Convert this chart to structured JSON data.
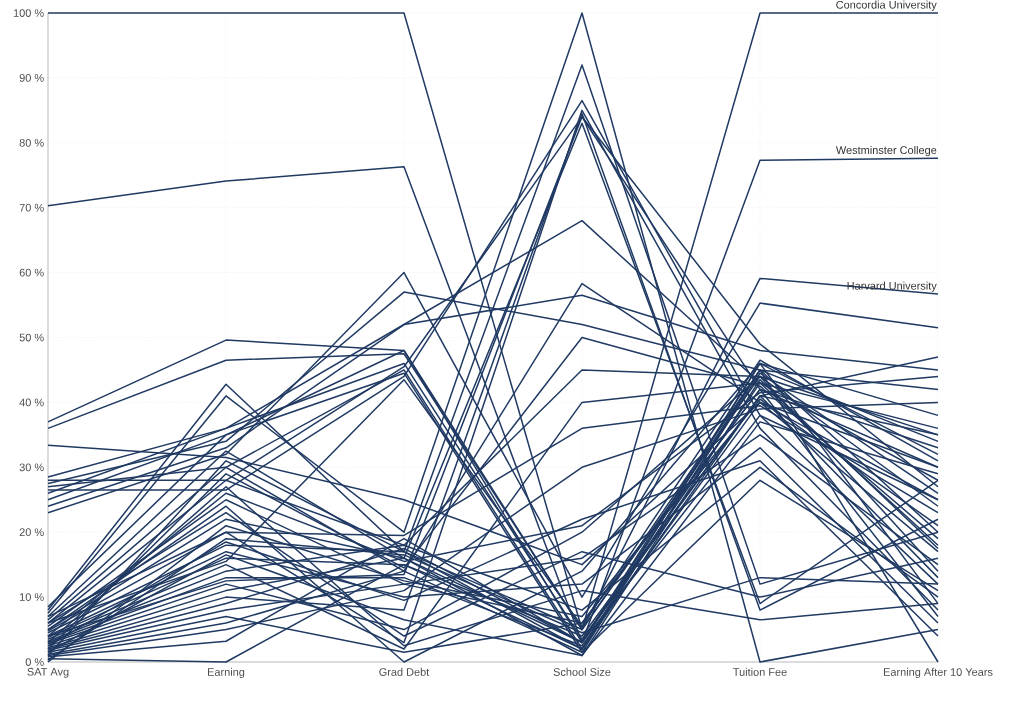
{
  "chart_data": {
    "type": "line",
    "categories": [
      "SAT Avg",
      "Earning",
      "Grad Debt",
      "School Size",
      "Tuition Fee",
      "Earning After 10 Years"
    ],
    "ylim": [
      0,
      100
    ],
    "yticks": [
      {
        "value": 0,
        "label": "0 %"
      },
      {
        "value": 10,
        "label": "10 %"
      },
      {
        "value": 20,
        "label": "20 %"
      },
      {
        "value": 30,
        "label": "30 %"
      },
      {
        "value": 40,
        "label": "40 %"
      },
      {
        "value": 50,
        "label": "50 %"
      },
      {
        "value": 60,
        "label": "60 %"
      },
      {
        "value": 70,
        "label": "70 %"
      },
      {
        "value": 80,
        "label": "80 %"
      },
      {
        "value": 90,
        "label": "90 %"
      },
      {
        "value": 100,
        "label": "100 %"
      }
    ],
    "grid": true,
    "series": [
      {
        "name": "Concordia University",
        "color": "#203a63",
        "values": [
          100,
          100,
          100,
          5,
          100,
          100
        ]
      },
      {
        "name": "Westminster College",
        "color": "#203a63",
        "values": [
          70.3,
          74.1,
          76.3,
          3,
          77.3,
          77.6
        ]
      },
      {
        "name": "Harvard University",
        "color": "#203a63",
        "values": [
          37,
          49.6,
          48,
          5,
          59.1,
          56.7
        ]
      },
      {
        "color": "#203a63",
        "values": [
          36.0,
          46.5,
          47.5,
          5.0,
          44.0,
          35.0
        ]
      },
      {
        "color": "#203a63",
        "values": [
          33.4,
          31.5,
          25.0,
          15.0,
          40.0,
          30.0
        ]
      },
      {
        "color": "#203a63",
        "values": [
          28.5,
          36.0,
          52.0,
          56.5,
          48.0,
          45.0
        ]
      },
      {
        "color": "#203a63",
        "values": [
          28.0,
          28.0,
          45.5,
          84.0,
          42.0,
          33.0
        ]
      },
      {
        "color": "#203a63",
        "values": [
          27.5,
          34.0,
          57.0,
          52.0,
          45.0,
          42.0
        ]
      },
      {
        "color": "#203a63",
        "values": [
          27.0,
          30.0,
          45.0,
          2.0,
          46.0,
          38.0
        ]
      },
      {
        "color": "#203a63",
        "values": [
          26.5,
          26.5,
          44.0,
          86.5,
          38.0,
          25.0
        ]
      },
      {
        "color": "#203a63",
        "values": [
          26.0,
          36.0,
          46.0,
          3.5,
          41.0,
          47.0
        ]
      },
      {
        "color": "#203a63",
        "values": [
          25.0,
          35.0,
          44.5,
          1.5,
          45.0,
          34.0
        ]
      },
      {
        "color": "#203a63",
        "values": [
          24.0,
          33.0,
          52.0,
          68.0,
          43.0,
          28.0
        ]
      },
      {
        "color": "#203a63",
        "values": [
          23.0,
          32.0,
          60.0,
          10.0,
          55.3,
          51.5
        ]
      },
      {
        "color": "#203a63",
        "values": [
          8.0,
          42.8,
          17.0,
          92.0,
          12.0,
          20.0
        ]
      },
      {
        "color": "#203a63",
        "values": [
          7.5,
          41.0,
          20.0,
          100.0,
          0.0,
          5.0
        ]
      },
      {
        "color": "#203a63",
        "values": [
          7.0,
          32.5,
          16.0,
          83.0,
          9.0,
          28.0
        ]
      },
      {
        "color": "#203a63",
        "values": [
          6.5,
          30.0,
          14.0,
          58.3,
          40.0,
          17.0
        ]
      },
      {
        "color": "#203a63",
        "values": [
          6.0,
          28.0,
          18.0,
          45.0,
          44.0,
          24.0
        ]
      },
      {
        "color": "#203a63",
        "values": [
          5.5,
          25.0,
          12.0,
          6.0,
          42.0,
          30.0
        ]
      },
      {
        "color": "#203a63",
        "values": [
          5.0,
          22.0,
          16.0,
          3.0,
          38.0,
          12.0
        ]
      },
      {
        "color": "#203a63",
        "values": [
          4.8,
          20.0,
          3.0,
          85.0,
          36.0,
          8.0
        ]
      },
      {
        "color": "#203a63",
        "values": [
          4.5,
          18.0,
          17.0,
          5.0,
          45.0,
          20.0
        ]
      },
      {
        "color": "#203a63",
        "values": [
          4.0,
          17.0,
          10.0,
          12.0,
          33.0,
          6.0
        ]
      },
      {
        "color": "#203a63",
        "values": [
          3.8,
          16.0,
          15.0,
          4.0,
          41.0,
          35.0
        ]
      },
      {
        "color": "#203a63",
        "values": [
          3.5,
          15.0,
          2.0,
          40.0,
          43.0,
          18.0
        ]
      },
      {
        "color": "#203a63",
        "values": [
          3.2,
          14.0,
          18.0,
          8.0,
          30.0,
          10.0
        ]
      },
      {
        "color": "#203a63",
        "values": [
          3.0,
          13.0,
          13.0,
          2.5,
          40.0,
          25.0
        ]
      },
      {
        "color": "#203a63",
        "values": [
          2.8,
          12.0,
          5.0,
          20.0,
          44.0,
          14.0
        ]
      },
      {
        "color": "#203a63",
        "values": [
          2.5,
          11.0,
          16.0,
          1.0,
          37.0,
          29.0
        ]
      },
      {
        "color": "#203a63",
        "values": [
          2.2,
          10.0,
          8.0,
          84.5,
          8.0,
          22.0
        ]
      },
      {
        "color": "#203a63",
        "values": [
          2.0,
          9.0,
          17.5,
          3.0,
          46.0,
          9.0
        ]
      },
      {
        "color": "#203a63",
        "values": [
          1.8,
          8.0,
          12.0,
          16.0,
          35.0,
          15.0
        ]
      },
      {
        "color": "#203a63",
        "values": [
          1.5,
          7.0,
          1.5,
          6.0,
          42.0,
          7.0
        ]
      },
      {
        "color": "#203a63",
        "values": [
          1.2,
          6.0,
          14.0,
          1.5,
          28.0,
          11.0
        ]
      },
      {
        "color": "#203a63",
        "values": [
          1.0,
          5.0,
          11.0,
          30.0,
          39.0,
          40.0
        ]
      },
      {
        "color": "#203a63",
        "values": [
          0.8,
          3.2,
          19.0,
          3.0,
          45.0,
          0.0
        ]
      },
      {
        "color": "#203a63",
        "values": [
          0.5,
          0.0,
          15.0,
          2.0,
          41.0,
          13.0
        ]
      },
      {
        "color": "#203a63",
        "values": [
          0.3,
          19.0,
          16.5,
          4.5,
          13.0,
          12.0
        ]
      },
      {
        "color": "#203a63",
        "values": [
          0.0,
          21.0,
          12.5,
          7.0,
          40.5,
          21.0
        ]
      },
      {
        "color": "#203a63",
        "values": [
          6.0,
          23.0,
          4.0,
          17.0,
          10.0,
          16.0
        ]
      },
      {
        "color": "#203a63",
        "values": [
          5.0,
          24.0,
          0.0,
          14.0,
          46.0,
          32.0
        ]
      },
      {
        "color": "#203a63",
        "values": [
          4.0,
          26.0,
          15.5,
          21.0,
          41.5,
          44.0
        ]
      },
      {
        "color": "#203a63",
        "values": [
          3.0,
          27.0,
          2.5,
          11.0,
          6.5,
          9.0
        ]
      },
      {
        "color": "#203a63",
        "values": [
          2.0,
          29.0,
          14.5,
          50.0,
          42.5,
          19.0
        ]
      },
      {
        "color": "#203a63",
        "values": [
          1.0,
          31.0,
          17.0,
          2.0,
          44.5,
          26.0
        ]
      },
      {
        "color": "#203a63",
        "values": [
          7.0,
          20.0,
          19.5,
          36.0,
          39.5,
          23.0
        ]
      },
      {
        "color": "#203a63",
        "values": [
          8.5,
          35.0,
          48.0,
          3.0,
          43.0,
          36.0
        ]
      },
      {
        "color": "#203a63",
        "values": [
          6.0,
          15.5,
          43.5,
          5.5,
          46.5,
          31.0
        ]
      },
      {
        "color": "#203a63",
        "values": [
          4.0,
          12.5,
          13.5,
          84.0,
          49.0,
          27.0
        ]
      },
      {
        "color": "#203a63",
        "values": [
          2.5,
          18.5,
          9.5,
          22.0,
          31.0,
          4.0
        ]
      },
      {
        "color": "#203a63",
        "values": [
          1.5,
          16.5,
          6.5,
          1.0,
          43.5,
          17.5
        ]
      }
    ]
  }
}
